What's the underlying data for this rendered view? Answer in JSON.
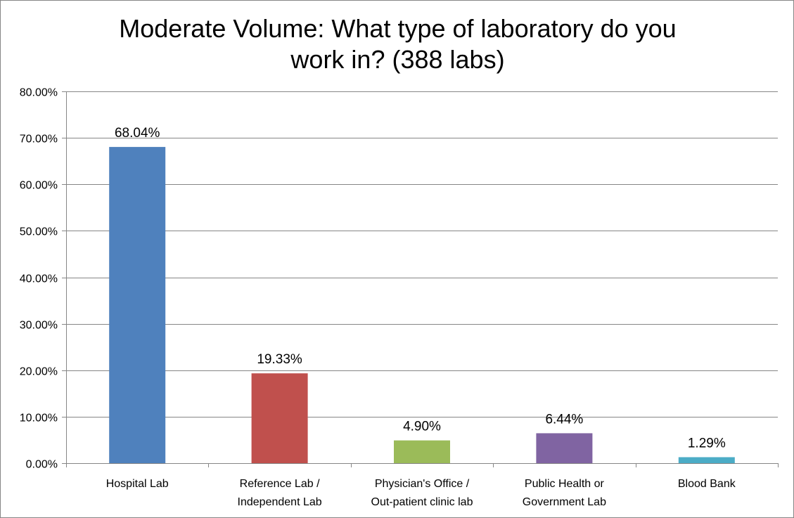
{
  "chart_data": {
    "type": "bar",
    "title_lines": [
      "Moderate Volume: What type of laboratory do you",
      "work in? (388 labs)"
    ],
    "categories": [
      [
        "Hospital Lab"
      ],
      [
        "Reference Lab /",
        "Independent Lab"
      ],
      [
        "Physician's Office /",
        "Out-patient clinic lab"
      ],
      [
        "Public Health or",
        "Government Lab"
      ],
      [
        "Blood Bank"
      ]
    ],
    "values": [
      68.04,
      19.33,
      4.9,
      6.44,
      1.29
    ],
    "data_labels": [
      "68.04%",
      "19.33%",
      "4.90%",
      "6.44%",
      "1.29%"
    ],
    "colors": [
      "#4F81BD",
      "#C0504D",
      "#9BBB59",
      "#8064A2",
      "#4BACC6"
    ],
    "ylim": [
      0,
      80
    ],
    "yticks": [
      0,
      10,
      20,
      30,
      40,
      50,
      60,
      70,
      80
    ],
    "ytick_labels": [
      "0.00%",
      "10.00%",
      "20.00%",
      "30.00%",
      "40.00%",
      "50.00%",
      "60.00%",
      "70.00%",
      "80.00%"
    ],
    "grid": true,
    "legend": "none",
    "xlabel": "",
    "ylabel": ""
  }
}
